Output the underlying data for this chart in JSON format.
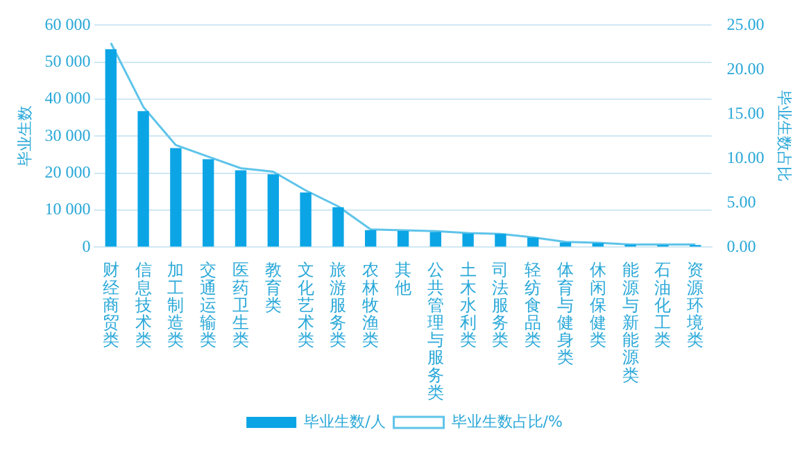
{
  "chart_data": {
    "type": "bar",
    "categories": [
      "财经商贸类",
      "信息技术类",
      "加工制造类",
      "交通运输类",
      "医药卫生类",
      "教育类",
      "文化艺术类",
      "旅游服务类",
      "农林牧渔类",
      "其他",
      "公共管理与服务类",
      "土木水利类",
      "司法服务类",
      "轻纺食品类",
      "体育与健身类",
      "休闲保健类",
      "能源与新能源类",
      "石油化工类",
      "资源环境类"
    ],
    "series": [
      {
        "name": "毕业生数/人",
        "color": "#0ba5e6",
        "values": [
          53500,
          36800,
          26800,
          23800,
          20800,
          19700,
          14800,
          10800,
          4600,
          4400,
          4100,
          3700,
          3600,
          2600,
          1300,
          1100,
          700,
          600,
          600
        ]
      },
      {
        "name": "毕业生数占比/%",
        "type": "line",
        "axis": "y2",
        "color": "#5ec4ea",
        "values": [
          23.0,
          15.8,
          11.5,
          10.2,
          8.9,
          8.5,
          6.4,
          4.6,
          2.0,
          1.9,
          1.8,
          1.6,
          1.5,
          1.1,
          0.6,
          0.5,
          0.3,
          0.3,
          0.3
        ]
      }
    ],
    "ylabel": "毕业生数",
    "y2label": "毕业生数占比",
    "ylim": [
      0,
      60000
    ],
    "yticks": [
      {
        "value": 0,
        "label": "0"
      },
      {
        "value": 10000,
        "label": "10 000"
      },
      {
        "value": 20000,
        "label": "20 000"
      },
      {
        "value": 30000,
        "label": "30 000"
      },
      {
        "value": 40000,
        "label": "40 000"
      },
      {
        "value": 50000,
        "label": "50 000"
      },
      {
        "value": 60000,
        "label": "60 000"
      }
    ],
    "y2lim": [
      0,
      25
    ],
    "y2ticks": [
      {
        "value": 0,
        "label": "0.00"
      },
      {
        "value": 5,
        "label": "5.00"
      },
      {
        "value": 10,
        "label": "10.00"
      },
      {
        "value": 15,
        "label": "15.00"
      },
      {
        "value": 20,
        "label": "20.00"
      },
      {
        "value": 25,
        "label": "25.00"
      }
    ],
    "grid": "y",
    "legend": "bottom",
    "marker": "none"
  }
}
